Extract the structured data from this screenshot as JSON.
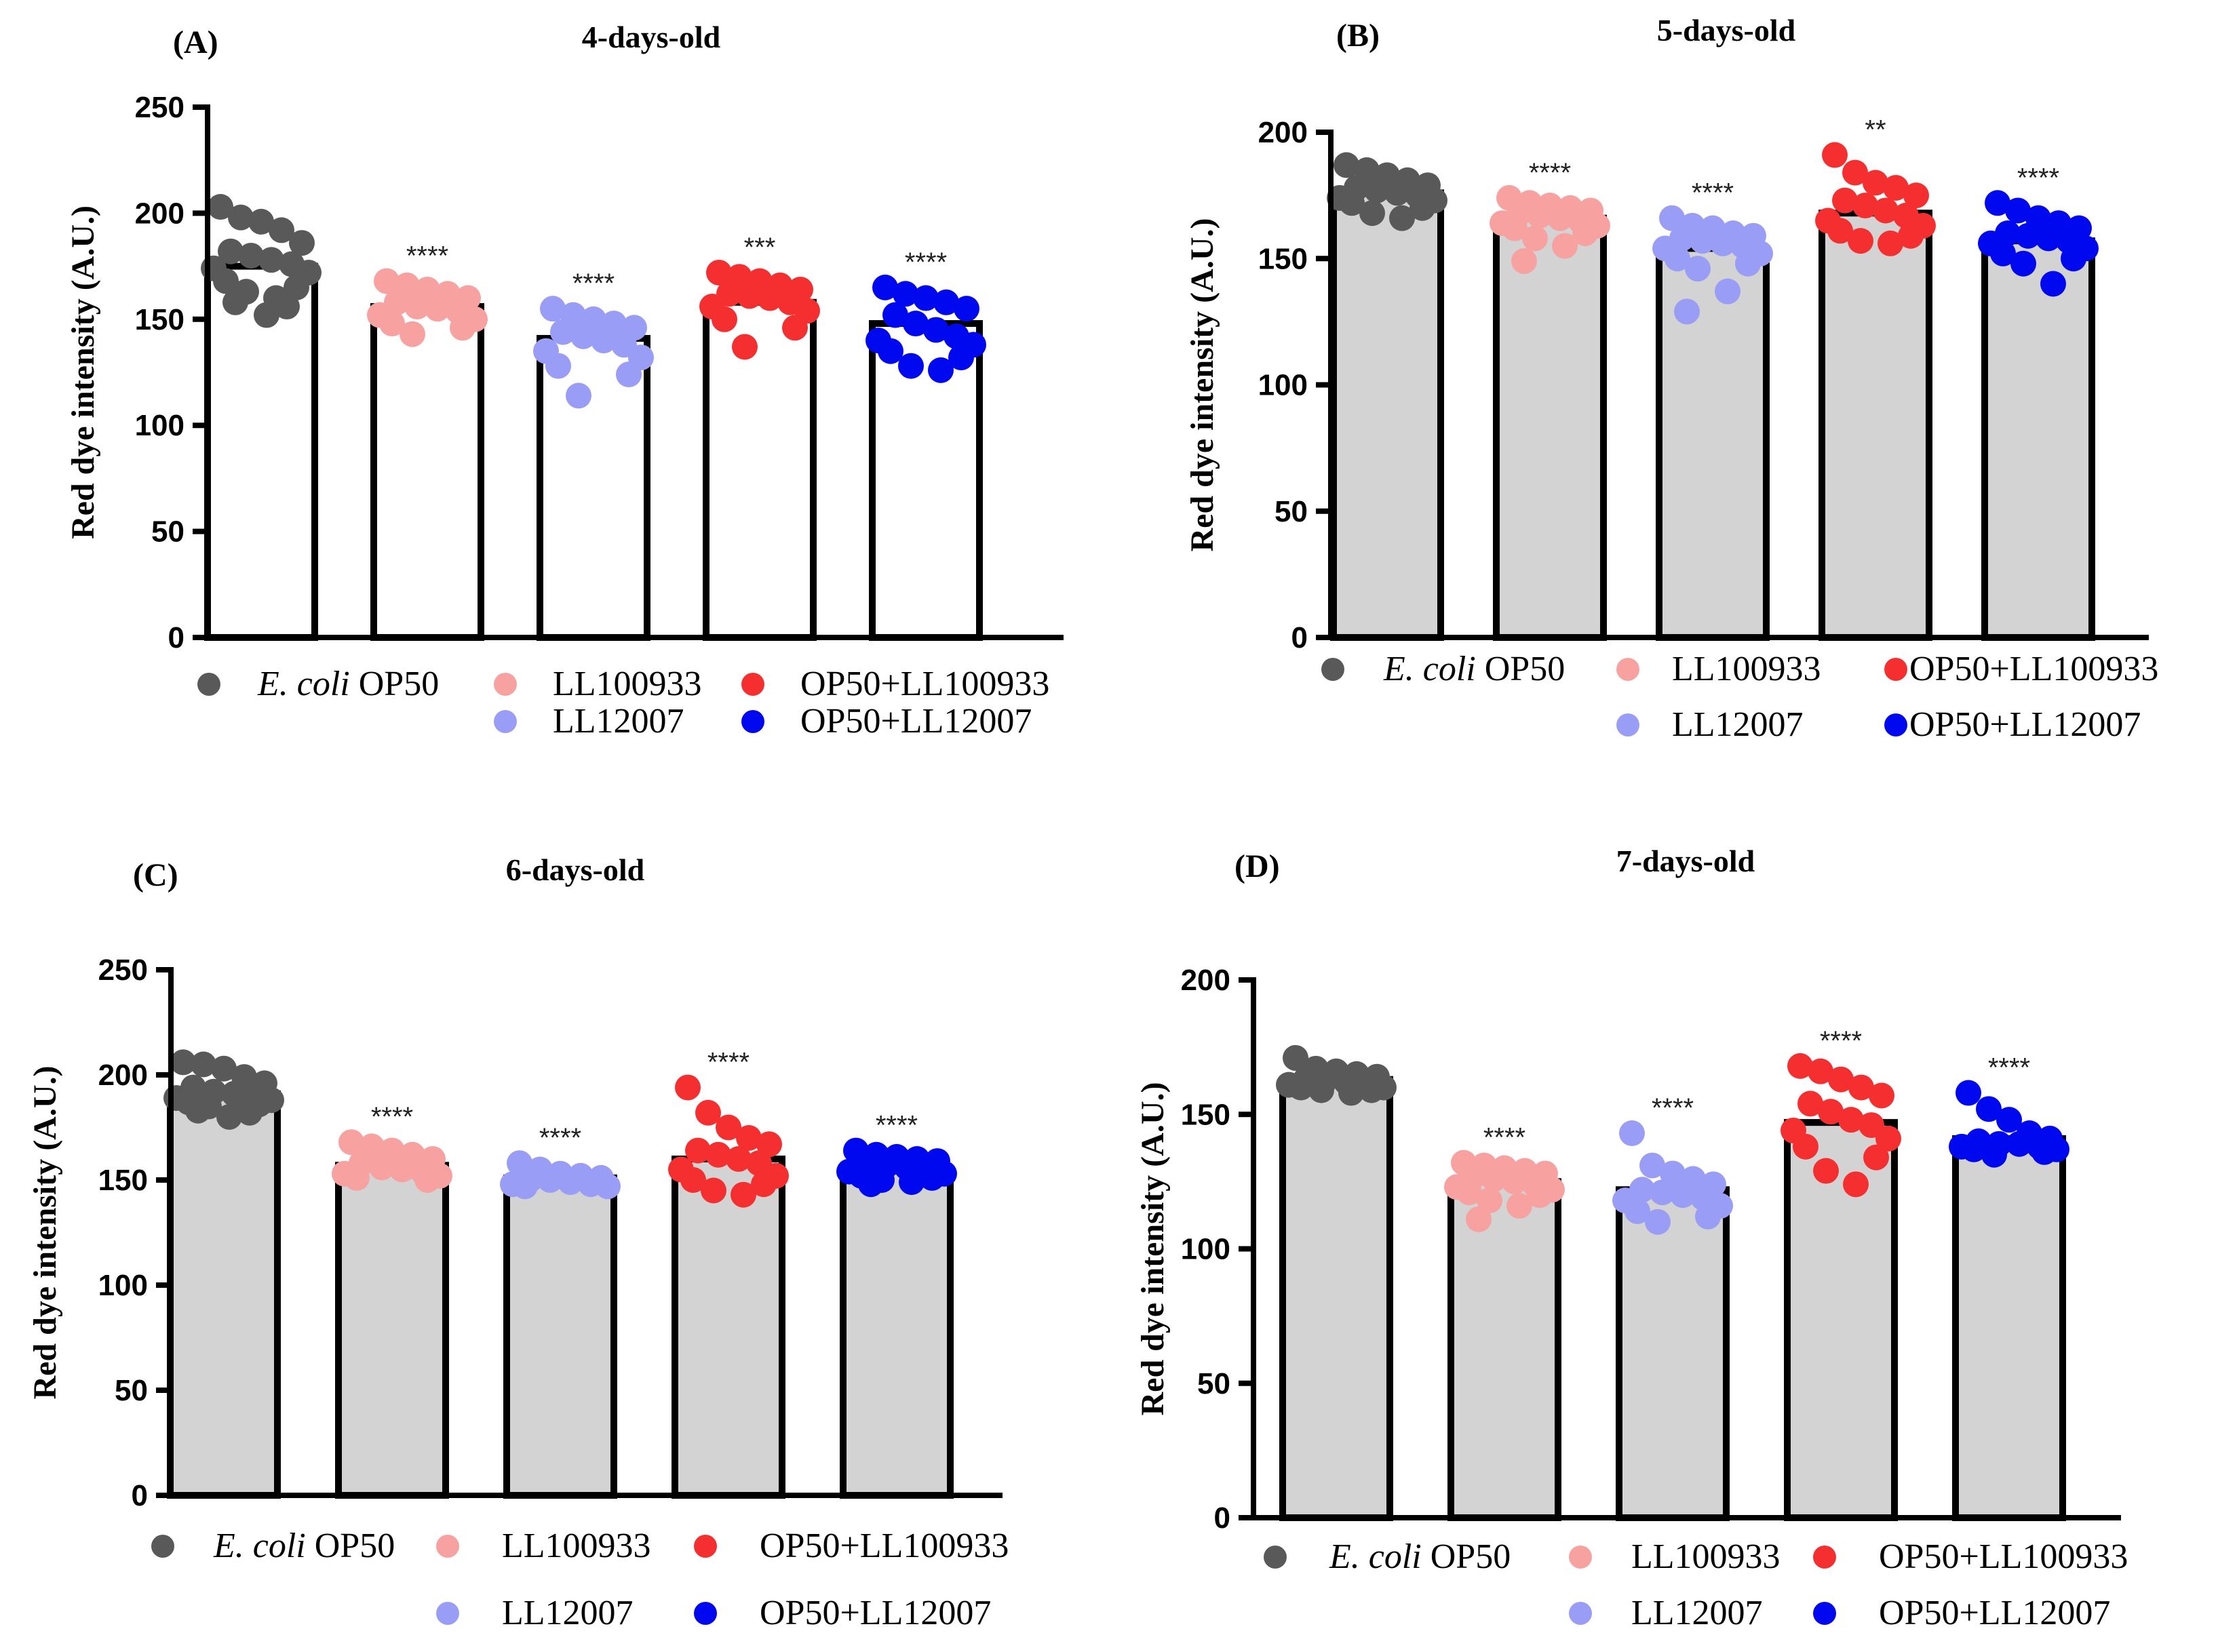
{
  "legend": {
    "items": [
      {
        "name": "E. coli OP50",
        "italic": "E. coli",
        "rest": " OP50",
        "color": "#595959"
      },
      {
        "name": "LL100933",
        "color": "#f7a1a1"
      },
      {
        "name": "OP50+LL100933",
        "color": "#f52f2f"
      },
      {
        "name": "LL12007",
        "color": "#9a9df5"
      },
      {
        "name": "OP50+LL12007",
        "color": "#0008f0"
      }
    ]
  },
  "chart_data": [
    {
      "panel": "(A)",
      "type": "bar",
      "title": "4-days-old",
      "ylabel": "Red dye intensity (A.U.)",
      "ylim": [
        0,
        250
      ],
      "yticks": [
        0,
        50,
        100,
        150,
        200,
        250
      ],
      "bar_fill": "#ffffff",
      "categories": [
        "E. coli OP50",
        "LL100933",
        "LL12007",
        "OP50+LL100933",
        "OP50+LL12007"
      ],
      "values": [
        175,
        156,
        141,
        158,
        148
      ],
      "significance": [
        "",
        "****",
        "****",
        "***",
        "****"
      ],
      "points": [
        [
          203,
          198,
          196,
          192,
          186,
          182,
          180,
          178,
          176,
          174,
          172,
          168,
          165,
          163,
          160,
          158,
          156,
          152
        ],
        [
          168,
          166,
          164,
          162,
          160,
          158,
          156,
          155,
          154,
          152,
          150,
          148,
          146,
          143
        ],
        [
          155,
          152,
          150,
          148,
          146,
          144,
          142,
          140,
          138,
          135,
          132,
          128,
          124,
          114
        ],
        [
          172,
          170,
          168,
          166,
          164,
          162,
          161,
          160,
          158,
          156,
          154,
          150,
          146,
          137
        ],
        [
          165,
          162,
          160,
          158,
          155,
          152,
          148,
          145,
          142,
          140,
          138,
          135,
          132,
          128,
          126
        ]
      ]
    },
    {
      "panel": "(B)",
      "type": "bar",
      "title": "5-days-old",
      "ylabel": "Red dye intensity (A.U.)",
      "ylim": [
        0,
        200
      ],
      "yticks": [
        0,
        50,
        100,
        150,
        200
      ],
      "bar_fill": "#d3d3d3",
      "categories": [
        "E. coli OP50",
        "LL100933",
        "LL12007",
        "OP50+LL100933",
        "OP50+LL12007"
      ],
      "values": [
        176,
        166,
        154,
        168,
        157
      ],
      "significance": [
        "",
        "****",
        "****",
        "**",
        "****"
      ],
      "points": [
        [
          187,
          185,
          183,
          181,
          179,
          178,
          177,
          176,
          175,
          174,
          173,
          172,
          170,
          168,
          166
        ],
        [
          174,
          172,
          171,
          170,
          169,
          168,
          167,
          166,
          165,
          164,
          163,
          162,
          160,
          158,
          155,
          149
        ],
        [
          166,
          163,
          162,
          160,
          159,
          158,
          157,
          156,
          155,
          154,
          152,
          150,
          148,
          146,
          137,
          129
        ],
        [
          191,
          184,
          180,
          178,
          175,
          173,
          171,
          169,
          167,
          165,
          163,
          161,
          159,
          157,
          156
        ],
        [
          172,
          169,
          166,
          164,
          162,
          160,
          159,
          158,
          157,
          156,
          154,
          152,
          150,
          148,
          140
        ]
      ]
    },
    {
      "panel": "(C)",
      "type": "bar",
      "title": "6-days-old",
      "ylabel": "Red dye intensity (A.U.)",
      "ylim": [
        0,
        250
      ],
      "yticks": [
        0,
        50,
        100,
        150,
        200,
        250
      ],
      "bar_fill": "#d3d3d3",
      "categories": [
        "E. coli OP50",
        "LL100933",
        "LL12007",
        "OP50+LL100933",
        "OP50+LL12007"
      ],
      "values": [
        191,
        157,
        151,
        160,
        155
      ],
      "significance": [
        "",
        "****",
        "****",
        "****",
        "****"
      ],
      "points": [
        [
          206,
          205,
          203,
          199,
          196,
          194,
          192,
          191,
          190,
          189,
          188,
          187,
          186,
          185,
          184,
          183,
          182,
          180
        ],
        [
          168,
          166,
          164,
          162,
          160,
          158,
          156,
          155,
          154,
          153,
          152,
          151,
          150
        ],
        [
          158,
          155,
          153,
          152,
          151,
          150,
          150,
          149,
          148,
          148,
          147,
          147
        ],
        [
          194,
          182,
          175,
          170,
          167,
          164,
          162,
          160,
          158,
          155,
          152,
          150,
          148,
          145,
          143
        ],
        [
          164,
          162,
          161,
          160,
          159,
          158,
          157,
          156,
          155,
          154,
          153,
          152,
          151,
          150,
          149,
          148
        ]
      ]
    },
    {
      "panel": "(D)",
      "type": "bar",
      "title": "7-days-old",
      "ylabel": "Red dye intensity (A.U.)",
      "ylim": [
        0,
        200
      ],
      "yticks": [
        0,
        50,
        100,
        150,
        200
      ],
      "bar_fill": "#d3d3d3",
      "categories": [
        "E. coli OP50",
        "LL100933",
        "LL12007",
        "OP50+LL100933",
        "OP50+LL12007"
      ],
      "values": [
        163,
        125,
        122,
        147,
        141
      ],
      "significance": [
        "",
        "****",
        "****",
        "****",
        "****"
      ],
      "points": [
        [
          171,
          167,
          166,
          165,
          164,
          163,
          163,
          162,
          162,
          161,
          160,
          160,
          159,
          159,
          158
        ],
        [
          132,
          131,
          130,
          129,
          128,
          127,
          126,
          125,
          124,
          123,
          122,
          121,
          120,
          118,
          116,
          111
        ],
        [
          143,
          131,
          128,
          126,
          124,
          122,
          121,
          120,
          119,
          118,
          116,
          114,
          112,
          110
        ],
        [
          168,
          166,
          163,
          160,
          157,
          154,
          151,
          148,
          146,
          144,
          141,
          138,
          134,
          129,
          124
        ],
        [
          158,
          152,
          148,
          143,
          141,
          140,
          139,
          139,
          138,
          138,
          137,
          137,
          136,
          135
        ]
      ]
    }
  ]
}
